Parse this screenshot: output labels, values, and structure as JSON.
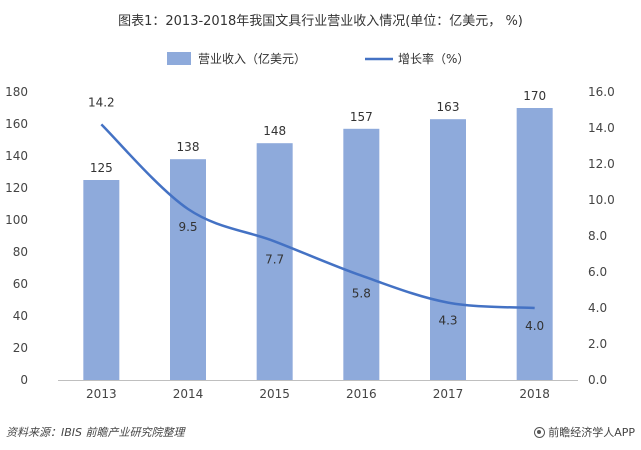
{
  "title": "图表1：2013-2018年我国文具行业营业收入情况(单位：亿美元， %)",
  "source": "资料来源：IBIS 前瞻产业研究院整理",
  "brand": "前瞻经济学人APP",
  "colors": {
    "bar": "#8eaadb",
    "line": "#4472c4",
    "grid": "#e6e6e6"
  },
  "chart_data": {
    "type": "bar+line",
    "categories": [
      "2013",
      "2014",
      "2015",
      "2016",
      "2017",
      "2018"
    ],
    "series": [
      {
        "name": "营业收入（亿美元）",
        "type": "bar",
        "axis": "left",
        "values": [
          125,
          138,
          148,
          157,
          163,
          170
        ],
        "labels": [
          "125",
          "138",
          "148",
          "157",
          "163",
          "170"
        ]
      },
      {
        "name": "增长率（%）",
        "type": "line",
        "axis": "right",
        "values": [
          14.2,
          9.5,
          7.7,
          5.8,
          4.3,
          4.0
        ],
        "labels": [
          "14.2",
          "9.5",
          "7.7",
          "5.8",
          "4.3",
          "4.0"
        ]
      }
    ],
    "ylim": [
      0,
      180
    ],
    "yticks": [
      "0",
      "20",
      "40",
      "60",
      "80",
      "100",
      "120",
      "140",
      "160",
      "180"
    ],
    "y2lim": [
      0,
      16
    ],
    "y2ticks": [
      "0.0",
      "2.0",
      "4.0",
      "6.0",
      "8.0",
      "10.0",
      "12.0",
      "14.0",
      "16.0"
    ],
    "legend_position": "top-center",
    "grid": false
  }
}
